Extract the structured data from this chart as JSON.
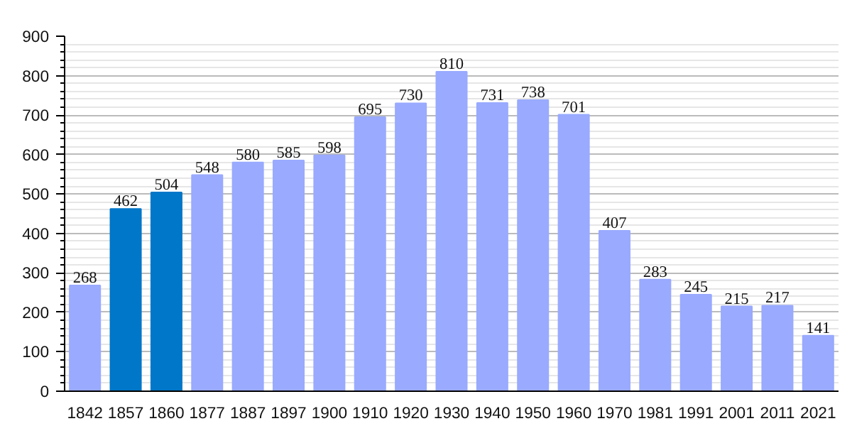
{
  "chart_data": {
    "type": "bar",
    "categories": [
      "1842",
      "1857",
      "1860",
      "1877",
      "1887",
      "1897",
      "1900",
      "1910",
      "1920",
      "1930",
      "1940",
      "1950",
      "1960",
      "1970",
      "1981",
      "1991",
      "2001",
      "2011",
      "2021"
    ],
    "values": [
      268,
      462,
      504,
      548,
      580,
      585,
      598,
      695,
      730,
      810,
      731,
      738,
      701,
      407,
      283,
      245,
      215,
      217,
      141
    ],
    "colors": [
      "#99aaff",
      "#0077c8",
      "#0077c8",
      "#99aaff",
      "#99aaff",
      "#99aaff",
      "#99aaff",
      "#99aaff",
      "#99aaff",
      "#99aaff",
      "#99aaff",
      "#99aaff",
      "#99aaff",
      "#99aaff",
      "#99aaff",
      "#99aaff",
      "#99aaff",
      "#99aaff",
      "#99aaff"
    ],
    "ylim": [
      0,
      900
    ],
    "yticks": [
      0,
      100,
      200,
      300,
      400,
      500,
      600,
      700,
      800,
      900
    ],
    "grid": "y",
    "data_labels": true
  }
}
